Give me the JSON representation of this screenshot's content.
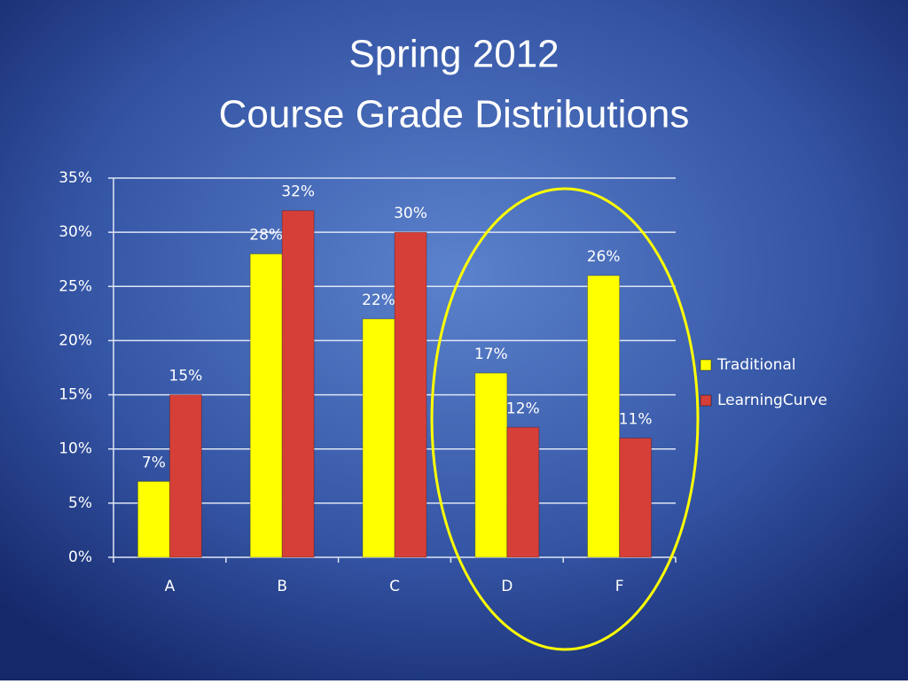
{
  "chart_data": {
    "type": "bar",
    "title": [
      "Spring 2012",
      "Course Grade Distributions"
    ],
    "categories": [
      "A",
      "B",
      "C",
      "D",
      "F"
    ],
    "series": [
      {
        "name": "Traditional",
        "color": "#ffff00",
        "values": [
          7,
          28,
          22,
          17,
          26
        ],
        "value_labels": [
          "7%",
          "28%",
          "22%",
          "17%",
          "26%"
        ]
      },
      {
        "name": "LearningCurve",
        "color": "#d63f38",
        "values": [
          15,
          32,
          30,
          12,
          11
        ],
        "value_labels": [
          "15%",
          "32%",
          "30%",
          "12%",
          "11%"
        ]
      }
    ],
    "ylim": [
      0,
      35
    ],
    "yticks": [
      {
        "value": 0,
        "label": "0%"
      },
      {
        "value": 5,
        "label": "5%"
      },
      {
        "value": 10,
        "label": "10%"
      },
      {
        "value": 15,
        "label": "15%"
      },
      {
        "value": 20,
        "label": "20%"
      },
      {
        "value": 25,
        "label": "25%"
      },
      {
        "value": 30,
        "label": "30%"
      },
      {
        "value": 35,
        "label": "35%"
      }
    ],
    "grid": true,
    "legend": "right"
  }
}
